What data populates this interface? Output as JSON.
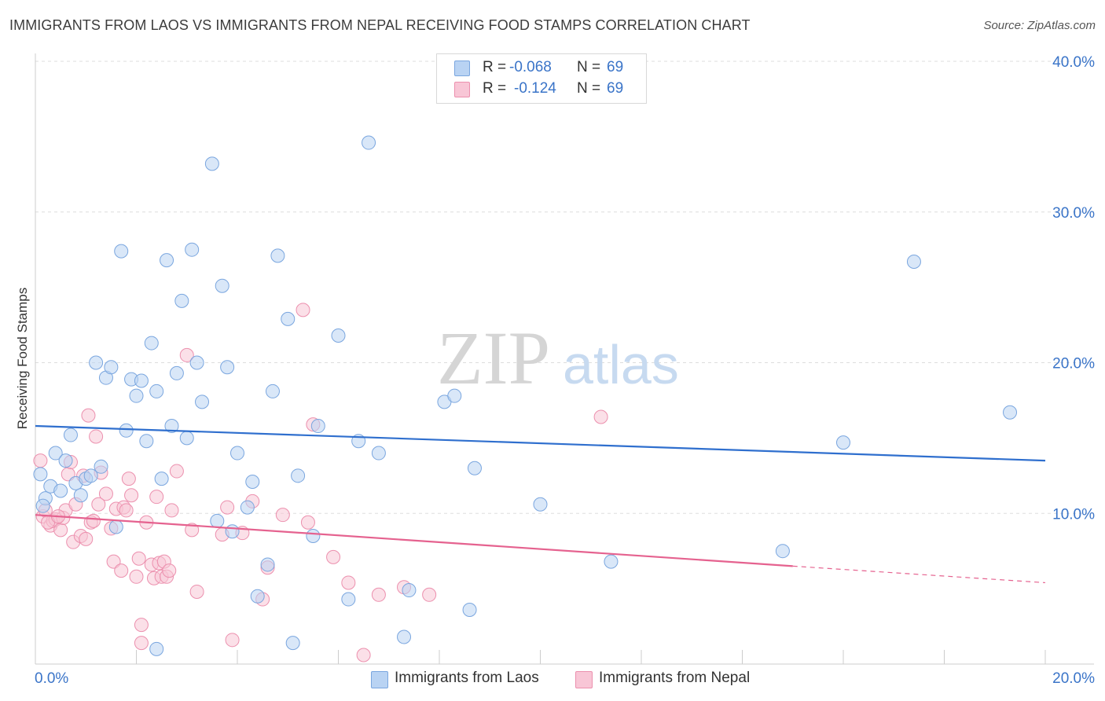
{
  "header": {
    "title": "IMMIGRANTS FROM LAOS VS IMMIGRANTS FROM NEPAL RECEIVING FOOD STAMPS CORRELATION CHART",
    "source": "Source: ZipAtlas.com"
  },
  "watermark": {
    "zip": "ZIP",
    "atlas": "atlas"
  },
  "legend": {
    "rows": [
      {
        "r_label": "R =",
        "r_value": "-0.068",
        "n_label": "N =",
        "n_value": "69"
      },
      {
        "r_label": "R =",
        "r_value": "-0.124",
        "n_label": "N =",
        "n_value": "69"
      }
    ]
  },
  "bottom_legend": {
    "laos": "Immigrants from Laos",
    "nepal": "Immigrants from Nepal"
  },
  "colors": {
    "laos_fill": "#b9d3f3",
    "laos_stroke": "#7aa6df",
    "laos_line": "#2f6fce",
    "nepal_fill": "#f8c6d6",
    "nepal_stroke": "#ec90ae",
    "nepal_line": "#e5628f",
    "tick_label": "#3a74c8",
    "grid": "#dddddd"
  },
  "chart_data": {
    "type": "scatter",
    "title": "IMMIGRANTS FROM LAOS VS IMMIGRANTS FROM NEPAL RECEIVING FOOD STAMPS CORRELATION CHART",
    "xlabel": "",
    "ylabel": "Receiving Food Stamps",
    "xlim": [
      0,
      20
    ],
    "ylim": [
      0,
      40
    ],
    "x_tick_labels": [
      "0.0%",
      "20.0%"
    ],
    "y_ticks": [
      10,
      20,
      30,
      40
    ],
    "y_tick_labels": [
      "10.0%",
      "20.0%",
      "30.0%",
      "40.0%"
    ],
    "grid": true,
    "legend_position": "top-center",
    "series": [
      {
        "name": "Immigrants from Laos",
        "trend": {
          "x": [
            0,
            20
          ],
          "y": [
            15.8,
            13.5
          ]
        },
        "points": [
          [
            0.1,
            12.6
          ],
          [
            0.2,
            11.0
          ],
          [
            0.3,
            11.8
          ],
          [
            0.4,
            14.0
          ],
          [
            0.5,
            11.5
          ],
          [
            0.6,
            13.5
          ],
          [
            0.7,
            15.2
          ],
          [
            0.8,
            12.0
          ],
          [
            0.9,
            11.2
          ],
          [
            1.0,
            12.3
          ],
          [
            1.1,
            12.5
          ],
          [
            1.2,
            20.0
          ],
          [
            1.3,
            13.1
          ],
          [
            1.4,
            19.0
          ],
          [
            1.5,
            19.7
          ],
          [
            1.6,
            9.1
          ],
          [
            1.7,
            27.4
          ],
          [
            1.8,
            15.5
          ],
          [
            1.9,
            18.9
          ],
          [
            2.0,
            17.8
          ],
          [
            2.1,
            18.8
          ],
          [
            2.2,
            14.8
          ],
          [
            2.3,
            21.3
          ],
          [
            2.4,
            18.1
          ],
          [
            2.5,
            12.3
          ],
          [
            2.6,
            26.8
          ],
          [
            2.7,
            15.8
          ],
          [
            2.8,
            19.3
          ],
          [
            2.9,
            24.1
          ],
          [
            3.0,
            15.0
          ],
          [
            3.1,
            27.5
          ],
          [
            3.2,
            20.0
          ],
          [
            3.3,
            17.4
          ],
          [
            3.5,
            33.2
          ],
          [
            3.6,
            9.5
          ],
          [
            3.7,
            25.1
          ],
          [
            3.8,
            19.7
          ],
          [
            3.9,
            8.8
          ],
          [
            4.0,
            14.0
          ],
          [
            4.2,
            10.4
          ],
          [
            4.3,
            12.1
          ],
          [
            4.4,
            4.5
          ],
          [
            4.6,
            6.6
          ],
          [
            4.7,
            18.1
          ],
          [
            4.8,
            27.1
          ],
          [
            5.0,
            22.9
          ],
          [
            5.1,
            1.4
          ],
          [
            5.2,
            12.5
          ],
          [
            5.5,
            8.5
          ],
          [
            5.6,
            15.8
          ],
          [
            6.0,
            21.8
          ],
          [
            6.2,
            4.3
          ],
          [
            6.4,
            14.8
          ],
          [
            6.6,
            34.6
          ],
          [
            6.8,
            14.0
          ],
          [
            7.3,
            1.8
          ],
          [
            7.4,
            4.9
          ],
          [
            8.1,
            17.4
          ],
          [
            8.3,
            17.8
          ],
          [
            8.6,
            3.6
          ],
          [
            8.7,
            13.0
          ],
          [
            10.0,
            10.6
          ],
          [
            11.4,
            6.8
          ],
          [
            14.8,
            7.5
          ],
          [
            16.0,
            14.7
          ],
          [
            17.4,
            26.7
          ],
          [
            19.3,
            16.7
          ],
          [
            2.4,
            1.0
          ],
          [
            0.15,
            10.5
          ]
        ]
      },
      {
        "name": "Immigrants from Nepal",
        "trend": {
          "x": [
            0,
            15.0
          ],
          "y": [
            9.9,
            6.5
          ]
        },
        "trend_dashed": {
          "x": [
            15.0,
            20
          ],
          "y": [
            6.5,
            5.4
          ]
        },
        "points": [
          [
            0.1,
            13.5
          ],
          [
            0.15,
            9.8
          ],
          [
            0.2,
            10.2
          ],
          [
            0.3,
            9.2
          ],
          [
            0.35,
            9.5
          ],
          [
            0.4,
            9.6
          ],
          [
            0.5,
            8.9
          ],
          [
            0.55,
            9.7
          ],
          [
            0.6,
            10.2
          ],
          [
            0.65,
            12.6
          ],
          [
            0.7,
            13.4
          ],
          [
            0.75,
            8.1
          ],
          [
            0.8,
            10.6
          ],
          [
            0.9,
            8.5
          ],
          [
            0.95,
            12.5
          ],
          [
            1.0,
            8.3
          ],
          [
            1.05,
            16.5
          ],
          [
            1.1,
            9.4
          ],
          [
            1.15,
            9.5
          ],
          [
            1.2,
            15.1
          ],
          [
            1.3,
            12.7
          ],
          [
            1.4,
            11.3
          ],
          [
            1.5,
            9.0
          ],
          [
            1.55,
            6.8
          ],
          [
            1.6,
            10.3
          ],
          [
            1.7,
            6.2
          ],
          [
            1.75,
            10.4
          ],
          [
            1.8,
            10.2
          ],
          [
            1.85,
            12.3
          ],
          [
            1.9,
            11.2
          ],
          [
            2.0,
            5.8
          ],
          [
            2.05,
            7.0
          ],
          [
            2.1,
            2.6
          ],
          [
            2.2,
            9.4
          ],
          [
            2.3,
            6.6
          ],
          [
            2.35,
            5.7
          ],
          [
            2.4,
            11.1
          ],
          [
            2.45,
            6.7
          ],
          [
            2.5,
            5.8
          ],
          [
            2.55,
            6.8
          ],
          [
            2.6,
            5.8
          ],
          [
            2.65,
            6.2
          ],
          [
            2.7,
            10.2
          ],
          [
            2.8,
            12.8
          ],
          [
            3.0,
            20.5
          ],
          [
            3.1,
            8.9
          ],
          [
            3.2,
            4.8
          ],
          [
            3.8,
            10.4
          ],
          [
            3.9,
            1.6
          ],
          [
            4.1,
            8.7
          ],
          [
            4.3,
            10.8
          ],
          [
            4.5,
            4.3
          ],
          [
            4.9,
            9.9
          ],
          [
            5.3,
            23.5
          ],
          [
            5.4,
            9.4
          ],
          [
            5.5,
            15.9
          ],
          [
            5.9,
            7.1
          ],
          [
            6.2,
            5.4
          ],
          [
            6.5,
            0.6
          ],
          [
            6.8,
            4.6
          ],
          [
            7.3,
            5.1
          ],
          [
            7.8,
            4.6
          ],
          [
            11.2,
            16.4
          ],
          [
            2.1,
            1.4
          ],
          [
            4.6,
            6.4
          ],
          [
            0.25,
            9.4
          ],
          [
            0.45,
            9.8
          ],
          [
            1.25,
            10.6
          ],
          [
            3.7,
            8.6
          ]
        ]
      }
    ]
  }
}
